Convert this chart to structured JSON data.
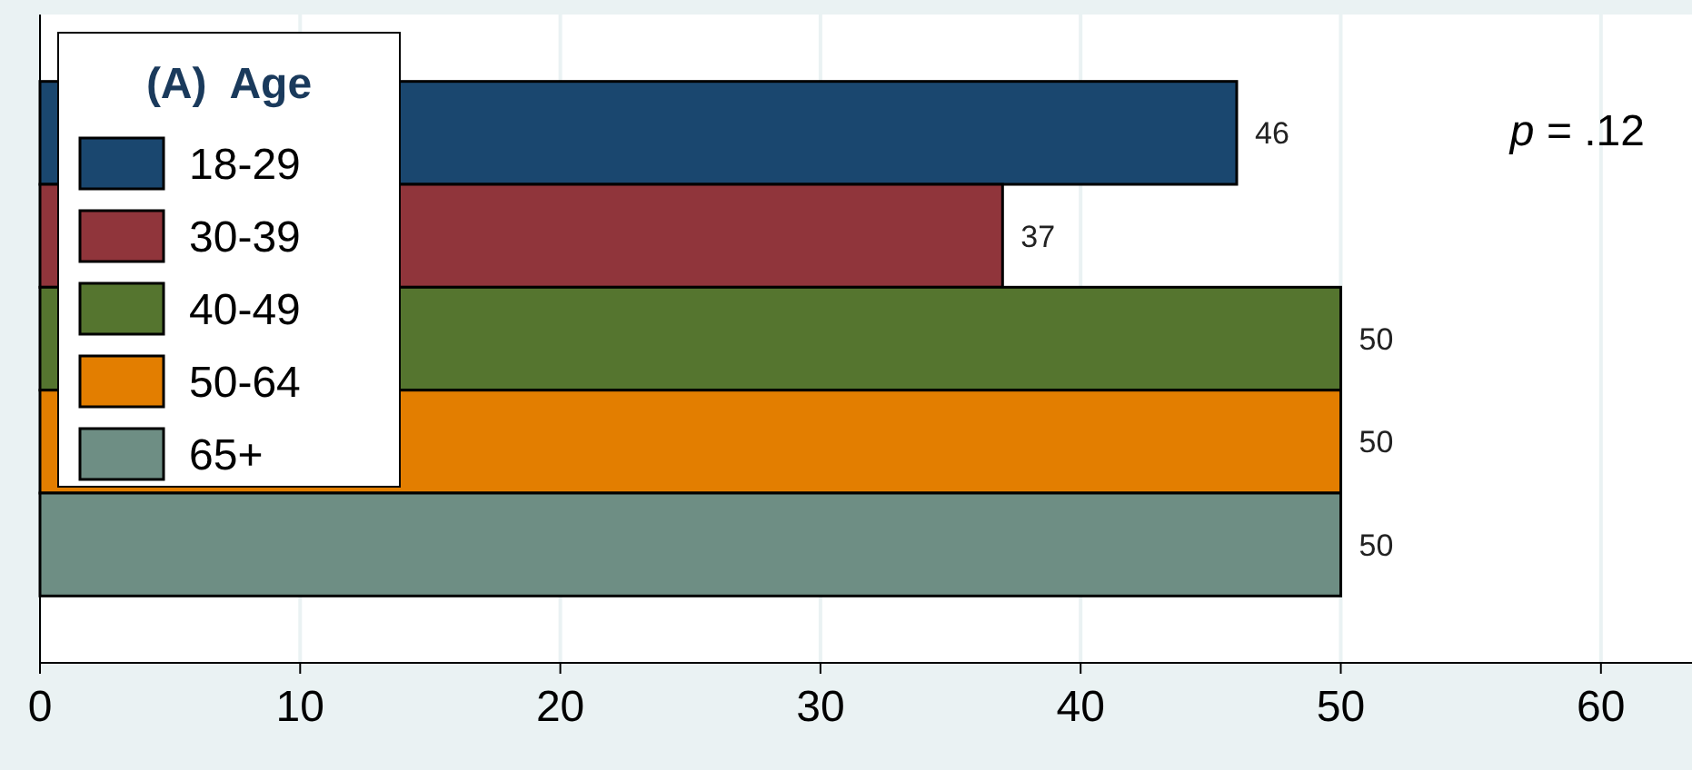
{
  "chart_data": {
    "type": "bar",
    "orientation": "horizontal",
    "categories": [
      null
    ],
    "series": [
      {
        "name": "18-29",
        "color": "#1a476f",
        "values": [
          46
        ]
      },
      {
        "name": "30-39",
        "color": "#90353b",
        "values": [
          37
        ]
      },
      {
        "name": "40-49",
        "color": "#55752f",
        "values": [
          50
        ]
      },
      {
        "name": "50-64",
        "color": "#e37e00",
        "values": [
          50
        ]
      },
      {
        "name": "65+",
        "color": "#6e8e84",
        "values": [
          50
        ]
      }
    ],
    "legend_title": "(A)  Age",
    "legend": "top left",
    "data_labels": true,
    "xlim": [
      0,
      63.5
    ],
    "xticks": [
      0,
      10,
      20,
      30,
      40,
      50,
      60
    ],
    "grid": "x",
    "tick_labels": "x",
    "annotations": [
      "p = .12"
    ]
  }
}
